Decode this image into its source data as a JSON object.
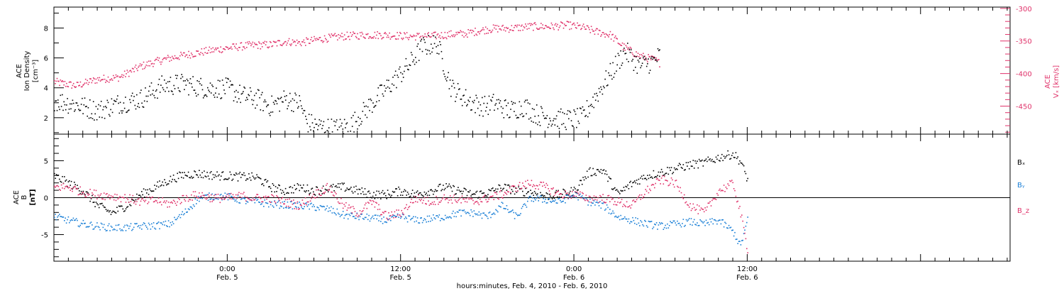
{
  "colors": {
    "black": "#000000",
    "pink": "#e0326a",
    "blue": "#1a7fd6",
    "axis": "#000000"
  },
  "chart_data": [
    {
      "type": "scatter",
      "panel": "top",
      "ylabel_left": [
        "ACE",
        "Ion Density",
        "[cm⁻³]"
      ],
      "ylabel_right": [
        "ACE",
        "Vₓ [km/s]"
      ],
      "ylim_left": [
        0.9,
        9.4
      ],
      "yticks_left": [
        2,
        4,
        6,
        8
      ],
      "ylim_right": [
        -493,
        -298
      ],
      "yticks_right": [
        -300,
        -350,
        -400,
        -450
      ],
      "x_unit": "hours since 2010-02-04 00:00",
      "xlim": [
        18.0,
        84.2
      ],
      "series": [
        {
          "name": "Ion Density",
          "axis": "left",
          "color": "black",
          "x": [
            18.0,
            19.5,
            21.0,
            22.5,
            24.0,
            25.5,
            27.0,
            28.5,
            30.0,
            31.0,
            32.0,
            33.0,
            34.0,
            35.0,
            35.5,
            36.5,
            37.5,
            38.5,
            39.5,
            40.5,
            41.5,
            42.5,
            43.5,
            44.5,
            45.5,
            46.5,
            47.0,
            47.8,
            48.5,
            49.5,
            50.5,
            51.5,
            52.5,
            53.5,
            54.5,
            55.5,
            56.5,
            57.5,
            58.5,
            59.5,
            59.9
          ],
          "values": [
            3.2,
            2.9,
            2.5,
            3.0,
            3.3,
            4.2,
            4.3,
            4.0,
            4.0,
            3.5,
            3.3,
            2.8,
            3.3,
            3.0,
            1.7,
            1.4,
            1.3,
            1.5,
            2.5,
            3.5,
            4.5,
            5.5,
            6.8,
            7.0,
            4.0,
            3.3,
            3.0,
            2.8,
            3.0,
            2.5,
            2.8,
            2.2,
            2.0,
            1.9,
            2.0,
            3.5,
            5.0,
            6.5,
            5.5,
            5.8,
            6.2
          ],
          "scatter_band": 0.7
        },
        {
          "name": "Vₓ",
          "axis": "right",
          "color": "pink",
          "x": [
            18.0,
            19.5,
            21.0,
            22.5,
            24.0,
            25.5,
            27.0,
            28.5,
            30.0,
            31.5,
            33.0,
            34.0,
            35.0,
            36.5,
            38.0,
            39.5,
            41.0,
            42.5,
            44.0,
            45.5,
            46.5,
            47.5,
            48.5,
            49.5,
            51.0,
            52.5,
            53.5,
            54.5,
            55.5,
            56.5,
            57.5,
            58.5,
            59.5,
            59.9
          ],
          "values": [
            -412,
            -418,
            -408,
            -405,
            -388,
            -378,
            -371,
            -365,
            -360,
            -356,
            -355,
            -350,
            -352,
            -346,
            -342,
            -340,
            -340,
            -342,
            -342,
            -339,
            -338,
            -333,
            -330,
            -330,
            -327,
            -327,
            -325,
            -328,
            -335,
            -340,
            -360,
            -372,
            -378,
            -383
          ],
          "scatter_band": 6
        }
      ]
    },
    {
      "type": "scatter",
      "panel": "bottom",
      "ylabel_left": [
        "ACE",
        "B",
        "[nT]"
      ],
      "legend_position": "right",
      "legend": [
        "Bₓ",
        "Bᵧ",
        "B_z"
      ],
      "ylim": [
        -8.6,
        8.6
      ],
      "yticks": [
        5,
        0,
        -5
      ],
      "zero_line": true,
      "x_unit": "hours since 2010-02-04 00:00",
      "xlim": [
        18.0,
        84.2
      ],
      "xticks": [
        {
          "hour": 30,
          "time": "0:00",
          "date": "Feb. 5"
        },
        {
          "hour": 42,
          "time": "12:00",
          "date": "Feb. 5"
        },
        {
          "hour": 54,
          "time": "0:00",
          "date": "Feb. 6"
        },
        {
          "hour": 66,
          "time": "12:00",
          "date": "Feb. 6"
        }
      ],
      "xlabel": "hours:minutes, Feb.  4, 2010 - Feb.  6, 2010",
      "series": [
        {
          "name": "Bₓ",
          "color": "black",
          "x": [
            18.0,
            19.0,
            20.0,
            21.0,
            22.0,
            23.0,
            24.0,
            25.0,
            26.0,
            27.0,
            28.0,
            29.0,
            30.0,
            31.0,
            32.0,
            33.0,
            34.0,
            35.0,
            36.0,
            37.0,
            38.0,
            39.0,
            40.0,
            41.0,
            42.0,
            43.0,
            44.0,
            45.0,
            46.0,
            47.0,
            48.0,
            49.0,
            50.0,
            51.0,
            52.0,
            53.0,
            54.0,
            55.0,
            56.0,
            57.0,
            58.0,
            59.0,
            60.0,
            61.0,
            62.0,
            63.0,
            64.0,
            65.0,
            65.5,
            66.0
          ],
          "values": [
            3.0,
            2.0,
            1.0,
            -1.0,
            -2.0,
            -1.0,
            0.5,
            1.5,
            2.5,
            3.2,
            3.3,
            3.1,
            3.0,
            2.9,
            2.8,
            1.5,
            1.0,
            1.5,
            1.0,
            1.3,
            1.5,
            1.0,
            0.5,
            0.5,
            1.0,
            0.5,
            1.0,
            1.5,
            1.0,
            0.5,
            0.7,
            1.5,
            1.0,
            0.8,
            0.3,
            0.5,
            1.0,
            3.5,
            3.8,
            0.5,
            2.0,
            3.0,
            3.5,
            4.0,
            4.5,
            4.8,
            5.5,
            6.0,
            5.0,
            2.5
          ],
          "scatter_band": 0.6
        },
        {
          "name": "Bᵧ",
          "color": "blue",
          "x": [
            18.0,
            19.0,
            20.0,
            21.0,
            22.0,
            23.0,
            24.0,
            25.0,
            26.0,
            27.0,
            28.0,
            29.0,
            30.0,
            31.0,
            32.0,
            33.0,
            34.0,
            35.0,
            36.0,
            37.0,
            38.0,
            39.0,
            40.0,
            41.0,
            42.0,
            43.0,
            44.0,
            45.0,
            46.0,
            47.0,
            48.0,
            49.0,
            50.0,
            51.0,
            52.0,
            53.0,
            54.0,
            55.0,
            56.0,
            57.0,
            58.0,
            59.0,
            60.0,
            61.0,
            62.0,
            63.0,
            64.0,
            65.0,
            65.5,
            66.0
          ],
          "values": [
            -2.5,
            -3.0,
            -3.5,
            -3.8,
            -4.0,
            -4.0,
            -3.8,
            -3.7,
            -3.5,
            -2.0,
            0.0,
            0.3,
            0.2,
            -0.3,
            -0.5,
            -0.8,
            -0.9,
            -1.0,
            -1.2,
            -1.5,
            -2.3,
            -2.5,
            -2.7,
            -3.0,
            -2.5,
            -3.0,
            -2.8,
            -2.5,
            -2.0,
            -2.0,
            -2.5,
            -1.0,
            -2.5,
            0.0,
            -0.2,
            -0.5,
            0.5,
            -0.5,
            -1.0,
            -2.5,
            -3.0,
            -3.5,
            -3.8,
            -3.5,
            -3.2,
            -3.5,
            -3.0,
            -4.5,
            -6.5,
            -3.0
          ],
          "scatter_band": 0.5
        },
        {
          "name": "B_z",
          "color": "pink",
          "x": [
            18.0,
            19.0,
            20.0,
            21.0,
            22.0,
            23.0,
            24.0,
            25.0,
            26.0,
            27.0,
            28.0,
            29.0,
            30.0,
            31.0,
            32.0,
            33.0,
            34.0,
            35.0,
            36.0,
            37.0,
            38.0,
            39.0,
            40.0,
            41.0,
            42.0,
            43.0,
            44.0,
            45.0,
            46.0,
            47.0,
            48.0,
            49.0,
            50.0,
            51.0,
            52.0,
            53.0,
            54.0,
            55.0,
            56.0,
            57.0,
            58.0,
            59.0,
            60.0,
            61.0,
            62.0,
            63.0,
            64.0,
            65.0,
            65.5,
            66.0
          ],
          "values": [
            1.5,
            1.5,
            0.8,
            0.5,
            0.3,
            0.0,
            -0.5,
            -0.3,
            -0.8,
            0.0,
            0.5,
            0.0,
            0.0,
            0.3,
            0.0,
            0.0,
            -0.5,
            -1.0,
            0.5,
            1.5,
            -1.0,
            -2.0,
            -0.5,
            -2.5,
            -2.0,
            0.0,
            -0.5,
            0.0,
            -0.2,
            -0.5,
            0.0,
            0.5,
            1.5,
            2.0,
            1.5,
            0.5,
            0.5,
            0.0,
            0.0,
            -0.5,
            -1.0,
            1.0,
            2.5,
            2.0,
            -1.0,
            -2.0,
            1.0,
            2.0,
            -2.0,
            -7.0
          ],
          "scatter_band": 0.6
        }
      ]
    }
  ]
}
